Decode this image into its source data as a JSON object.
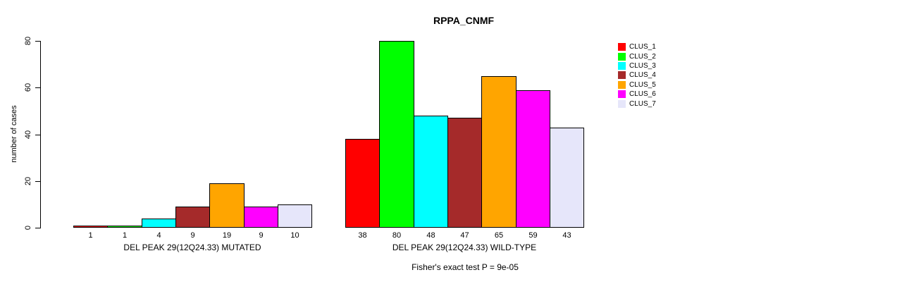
{
  "chart_data": {
    "type": "bar",
    "title": "RPPA_CNMF",
    "xlabel": "",
    "ylabel": "number of cases",
    "ylim": [
      0,
      80
    ],
    "yticks": [
      0,
      20,
      40,
      60,
      80
    ],
    "grid": false,
    "legend_position": "right",
    "series_labels": [
      "CLUS_1",
      "CLUS_2",
      "CLUS_3",
      "CLUS_4",
      "CLUS_5",
      "CLUS_6",
      "CLUS_7"
    ],
    "colors": [
      "#FF0000",
      "#00FF00",
      "#00FFFF",
      "#A52A2A",
      "#FFA500",
      "#FF00FF",
      "#E6E6FA"
    ],
    "groups": [
      {
        "label": "DEL PEAK 29(12Q24.33) MUTATED",
        "values": [
          1,
          1,
          4,
          9,
          19,
          9,
          10
        ]
      },
      {
        "label": "DEL PEAK 29(12Q24.33) WILD-TYPE",
        "values": [
          38,
          80,
          48,
          47,
          65,
          59,
          43
        ]
      }
    ],
    "annotation": "Fisher's exact test P = 9e-05"
  }
}
